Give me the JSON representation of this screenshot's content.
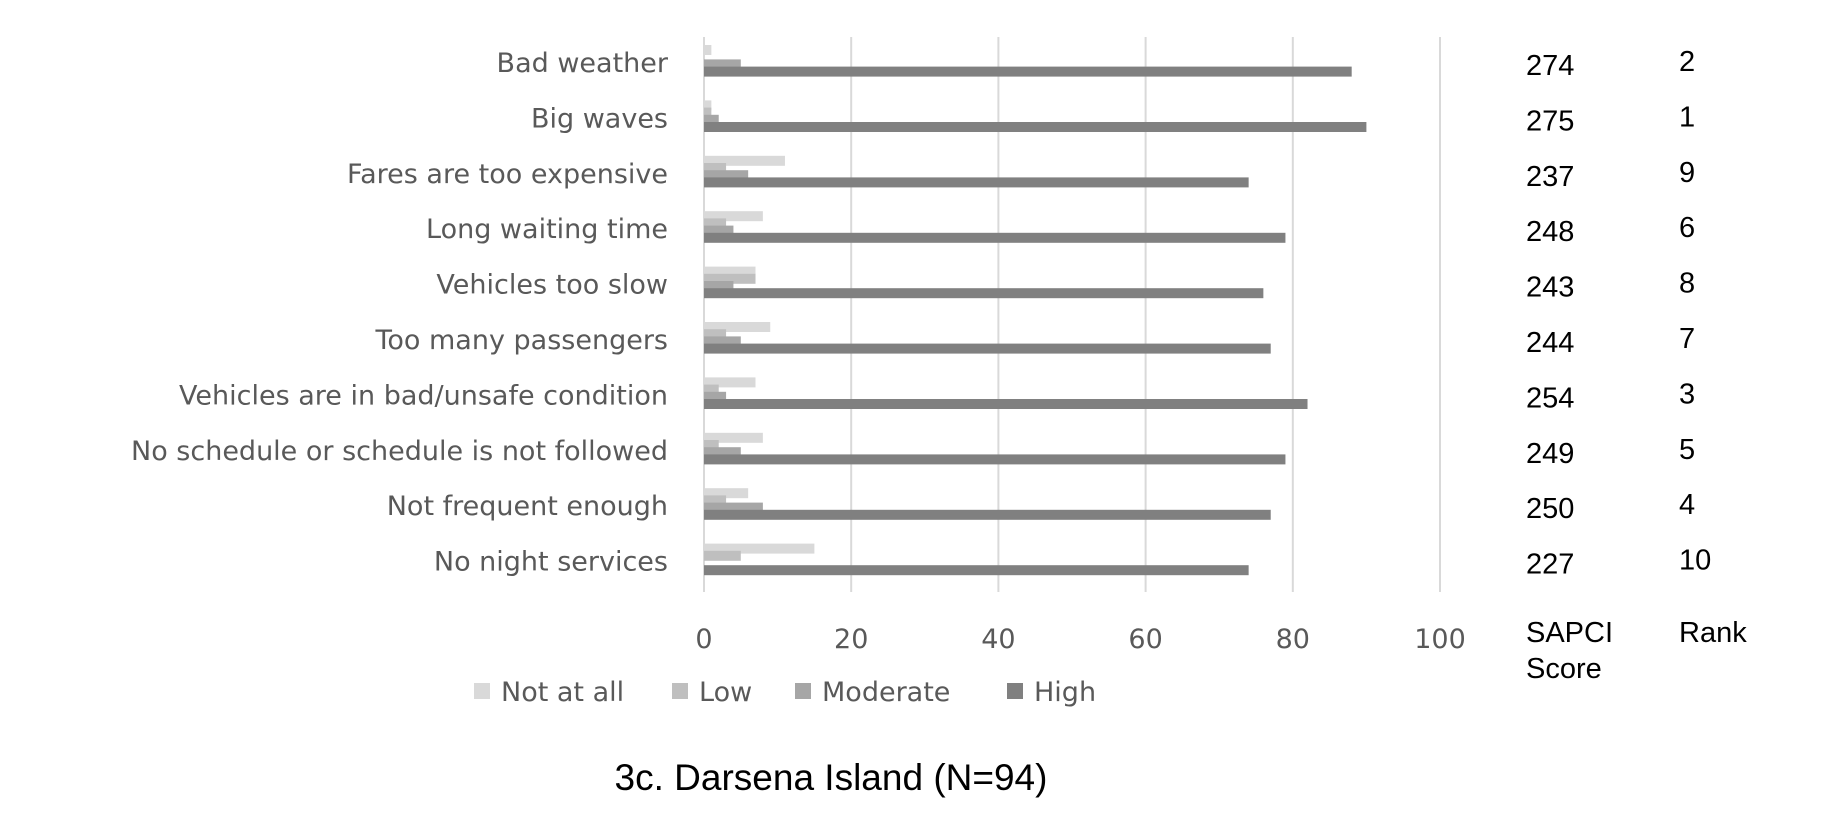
{
  "chart_data": {
    "type": "bar",
    "orientation": "horizontal",
    "title": "3c. Darsena Island (N=94)",
    "xlabel": "",
    "ylabel": "",
    "xlim": [
      0,
      100
    ],
    "x_ticks": [
      0,
      20,
      40,
      60,
      80,
      100
    ],
    "grid": true,
    "legend_position": "bottom",
    "categories": [
      "Bad weather",
      "Big waves",
      "Fares are too expensive",
      "Long waiting time",
      "Vehicles too slow",
      "Too many passengers",
      "Vehicles are in bad/unsafe condition",
      "No schedule or schedule is not followed",
      "Not frequent enough",
      "No night services"
    ],
    "series": [
      {
        "name": "Not at all",
        "color": "#d9d9d9",
        "values": [
          1,
          1,
          11,
          8,
          7,
          9,
          7,
          8,
          6,
          15
        ]
      },
      {
        "name": "Low",
        "color": "#bfbfbf",
        "values": [
          0,
          1,
          3,
          3,
          7,
          3,
          2,
          2,
          3,
          5
        ]
      },
      {
        "name": "Moderate",
        "color": "#a6a6a6",
        "values": [
          5,
          2,
          6,
          4,
          4,
          5,
          3,
          5,
          8,
          0
        ]
      },
      {
        "name": "High",
        "color": "#808080",
        "values": [
          88,
          90,
          74,
          79,
          76,
          77,
          82,
          79,
          77,
          74
        ]
      }
    ],
    "table_columns": {
      "score_header": [
        "SAPCI",
        "Score"
      ],
      "rank_header": "Rank",
      "scores": [
        "274",
        "275",
        "237",
        "248",
        "243",
        "244",
        "254",
        "249",
        "250",
        "227"
      ],
      "ranks": [
        "2",
        "1",
        "9",
        "6",
        "8",
        "7",
        "3",
        "5",
        "4",
        "10"
      ]
    }
  }
}
